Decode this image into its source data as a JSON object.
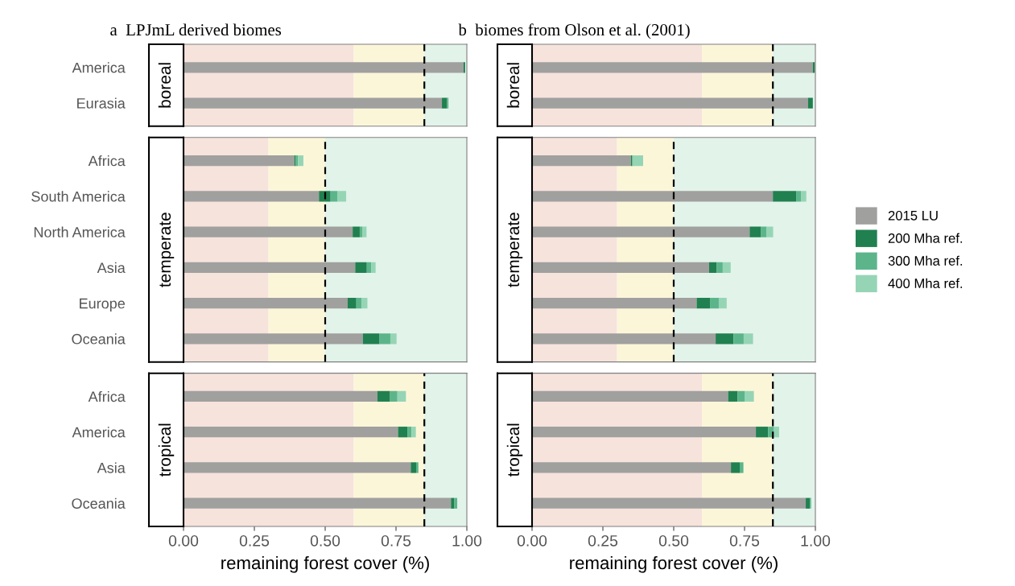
{
  "chart_data": [
    {
      "type": "bar",
      "orientation": "horizontal",
      "stacked": true,
      "title": "a  LPJmL derived biomes",
      "ylabel": "boreal",
      "categories": [
        "America",
        "Eurasia"
      ],
      "tick_labels": "y",
      "xlim": [
        0,
        1
      ],
      "bands": [
        {
          "axis": "x",
          "from": 0,
          "to": 0.6,
          "color": "#f6e3dc"
        },
        {
          "axis": "x",
          "from": 0.6,
          "to": 0.85,
          "color": "#fcf6d9"
        },
        {
          "axis": "x",
          "from": 0.85,
          "to": 1,
          "color": "#e2f3ea"
        }
      ],
      "ref_lines": [
        {
          "axis": "x",
          "value": 0.85,
          "color": "#000000",
          "line_style": "dashed"
        }
      ],
      "series": [
        {
          "color": "#a0a09f",
          "values": [
            0.988,
            0.912
          ]
        },
        {
          "color": "#21804f",
          "values": [
            0.006,
            0.018
          ]
        },
        {
          "color": "#5cb58a",
          "values": [
            0,
            0.005
          ]
        },
        {
          "color": "#95d5b5",
          "values": [
            0,
            0
          ]
        }
      ]
    },
    {
      "type": "bar",
      "orientation": "horizontal",
      "stacked": true,
      "title": "b  biomes from Olson et al. (2001)",
      "ylabel": "boreal",
      "categories": [
        null,
        null
      ],
      "tick_labels": false,
      "xlim": [
        0,
        1
      ],
      "bands": [
        {
          "axis": "x",
          "from": 0,
          "to": 0.6,
          "color": "#f6e3dc"
        },
        {
          "axis": "x",
          "from": 0.6,
          "to": 0.85,
          "color": "#fcf6d9"
        },
        {
          "axis": "x",
          "from": 0.85,
          "to": 1,
          "color": "#e2f3ea"
        }
      ],
      "ref_lines": [
        {
          "axis": "x",
          "value": 0.85,
          "color": "#000000",
          "line_style": "dashed"
        }
      ],
      "series": [
        {
          "color": "#a0a09f",
          "values": [
            0.991,
            0.974
          ]
        },
        {
          "color": "#21804f",
          "values": [
            0.007,
            0.017
          ]
        },
        {
          "color": "#5cb58a",
          "values": [
            0,
            0
          ]
        },
        {
          "color": "#95d5b5",
          "values": [
            0,
            0
          ]
        }
      ]
    },
    {
      "type": "bar",
      "orientation": "horizontal",
      "stacked": true,
      "ylabel": "temperate",
      "categories": [
        "Africa",
        "South America",
        "North America",
        "Asia",
        "Europe",
        "Oceania"
      ],
      "tick_labels": "y",
      "xlim": [
        0,
        1
      ],
      "bands": [
        {
          "axis": "x",
          "from": 0,
          "to": 0.3,
          "color": "#f6e3dc"
        },
        {
          "axis": "x",
          "from": 0.3,
          "to": 0.5,
          "color": "#fcf6d9"
        },
        {
          "axis": "x",
          "from": 0.5,
          "to": 1,
          "color": "#e2f3ea"
        }
      ],
      "ref_lines": [
        {
          "axis": "x",
          "value": 0.5,
          "color": "#000000",
          "line_style": "dashed"
        }
      ],
      "series": [
        {
          "color": "#a0a09f",
          "values": [
            0.391,
            0.478,
            0.597,
            0.606,
            0.579,
            0.633
          ]
        },
        {
          "color": "#21804f",
          "values": [
            0.005,
            0.041,
            0.025,
            0.041,
            0.031,
            0.059
          ]
        },
        {
          "color": "#5cb58a",
          "values": [
            0.008,
            0.025,
            0.01,
            0.016,
            0.019,
            0.038
          ]
        },
        {
          "color": "#95d5b5",
          "values": [
            0.019,
            0.03,
            0.014,
            0.015,
            0.02,
            0.022
          ]
        }
      ]
    },
    {
      "type": "bar",
      "orientation": "horizontal",
      "stacked": true,
      "ylabel": "temperate",
      "categories": [
        null,
        null,
        null,
        null,
        null,
        null
      ],
      "tick_labels": false,
      "legend": "right",
      "xlim": [
        0,
        1
      ],
      "bands": [
        {
          "axis": "x",
          "from": 0,
          "to": 0.3,
          "color": "#f6e3dc"
        },
        {
          "axis": "x",
          "from": 0.3,
          "to": 0.5,
          "color": "#fcf6d9"
        },
        {
          "axis": "x",
          "from": 0.5,
          "to": 1,
          "color": "#e2f3ea"
        }
      ],
      "ref_lines": [
        {
          "axis": "x",
          "value": 0.5,
          "color": "#000000",
          "line_style": "dashed"
        }
      ],
      "series": [
        {
          "name": "2015 LU",
          "color": "#a0a09f",
          "values": [
            0.349,
            0.85,
            0.768,
            0.625,
            0.581,
            0.648
          ]
        },
        {
          "name": "200 Mha ref.",
          "color": "#21804f",
          "values": [
            0.004,
            0.082,
            0.039,
            0.027,
            0.047,
            0.063
          ]
        },
        {
          "name": "300 Mha ref.",
          "color": "#5cb58a",
          "values": [
            0.004,
            0.017,
            0.021,
            0.021,
            0.031,
            0.036
          ]
        },
        {
          "name": "400 Mha ref.",
          "color": "#95d5b5",
          "values": [
            0.035,
            0.019,
            0.023,
            0.028,
            0.028,
            0.033
          ]
        }
      ]
    },
    {
      "type": "bar",
      "orientation": "horizontal",
      "stacked": true,
      "ylabel": "tropical",
      "xlabel": "remaining forest cover (%)",
      "categories": [
        "Africa",
        "America",
        "Asia",
        "Oceania"
      ],
      "xlim": [
        0,
        1
      ],
      "xticks": [
        {
          "value": 0,
          "label": "0.00"
        },
        {
          "value": 0.25,
          "label": "0.25"
        },
        {
          "value": 0.5,
          "label": "0.50"
        },
        {
          "value": 0.75,
          "label": "0.75"
        },
        {
          "value": 1,
          "label": "1.00"
        }
      ],
      "bands": [
        {
          "axis": "x",
          "from": 0,
          "to": 0.6,
          "color": "#f6e3dc"
        },
        {
          "axis": "x",
          "from": 0.6,
          "to": 0.85,
          "color": "#fcf6d9"
        },
        {
          "axis": "x",
          "from": 0.85,
          "to": 1,
          "color": "#e2f3ea"
        }
      ],
      "ref_lines": [
        {
          "axis": "x",
          "value": 0.85,
          "color": "#000000",
          "line_style": "dashed"
        }
      ],
      "series": [
        {
          "color": "#a0a09f",
          "values": [
            0.684,
            0.757,
            0.802,
            0.944
          ]
        },
        {
          "color": "#21804f",
          "values": [
            0.045,
            0.033,
            0.019,
            0.012
          ]
        },
        {
          "color": "#5cb58a",
          "values": [
            0.026,
            0.015,
            0.008,
            0.01
          ]
        },
        {
          "color": "#95d5b5",
          "values": [
            0.03,
            0.015,
            0,
            0
          ]
        }
      ]
    },
    {
      "type": "bar",
      "orientation": "horizontal",
      "stacked": true,
      "ylabel": "tropical",
      "xlabel": "remaining forest cover (%)",
      "categories": [
        null,
        null,
        null,
        null
      ],
      "tick_labels": "x",
      "xlim": [
        0,
        1
      ],
      "xticks": [
        {
          "value": 0,
          "label": "0.00"
        },
        {
          "value": 0.25,
          "label": "0.25"
        },
        {
          "value": 0.5,
          "label": "0.50"
        },
        {
          "value": 0.75,
          "label": "0.75"
        },
        {
          "value": 1,
          "label": "1.00"
        }
      ],
      "bands": [
        {
          "axis": "x",
          "from": 0,
          "to": 0.6,
          "color": "#f6e3dc"
        },
        {
          "axis": "x",
          "from": 0.6,
          "to": 0.85,
          "color": "#fcf6d9"
        },
        {
          "axis": "x",
          "from": 0.85,
          "to": 1,
          "color": "#e2f3ea"
        }
      ],
      "ref_lines": [
        {
          "axis": "x",
          "value": 0.85,
          "color": "#000000",
          "line_style": "dashed"
        }
      ],
      "series": [
        {
          "color": "#a0a09f",
          "values": [
            0.692,
            0.79,
            0.702,
            0.966
          ]
        },
        {
          "color": "#21804f",
          "values": [
            0.033,
            0.043,
            0.031,
            0.015
          ]
        },
        {
          "color": "#5cb58a",
          "values": [
            0.025,
            0.021,
            0.013,
            0.004
          ]
        },
        {
          "color": "#95d5b5",
          "values": [
            0.033,
            0.018,
            0,
            0
          ]
        }
      ]
    }
  ]
}
